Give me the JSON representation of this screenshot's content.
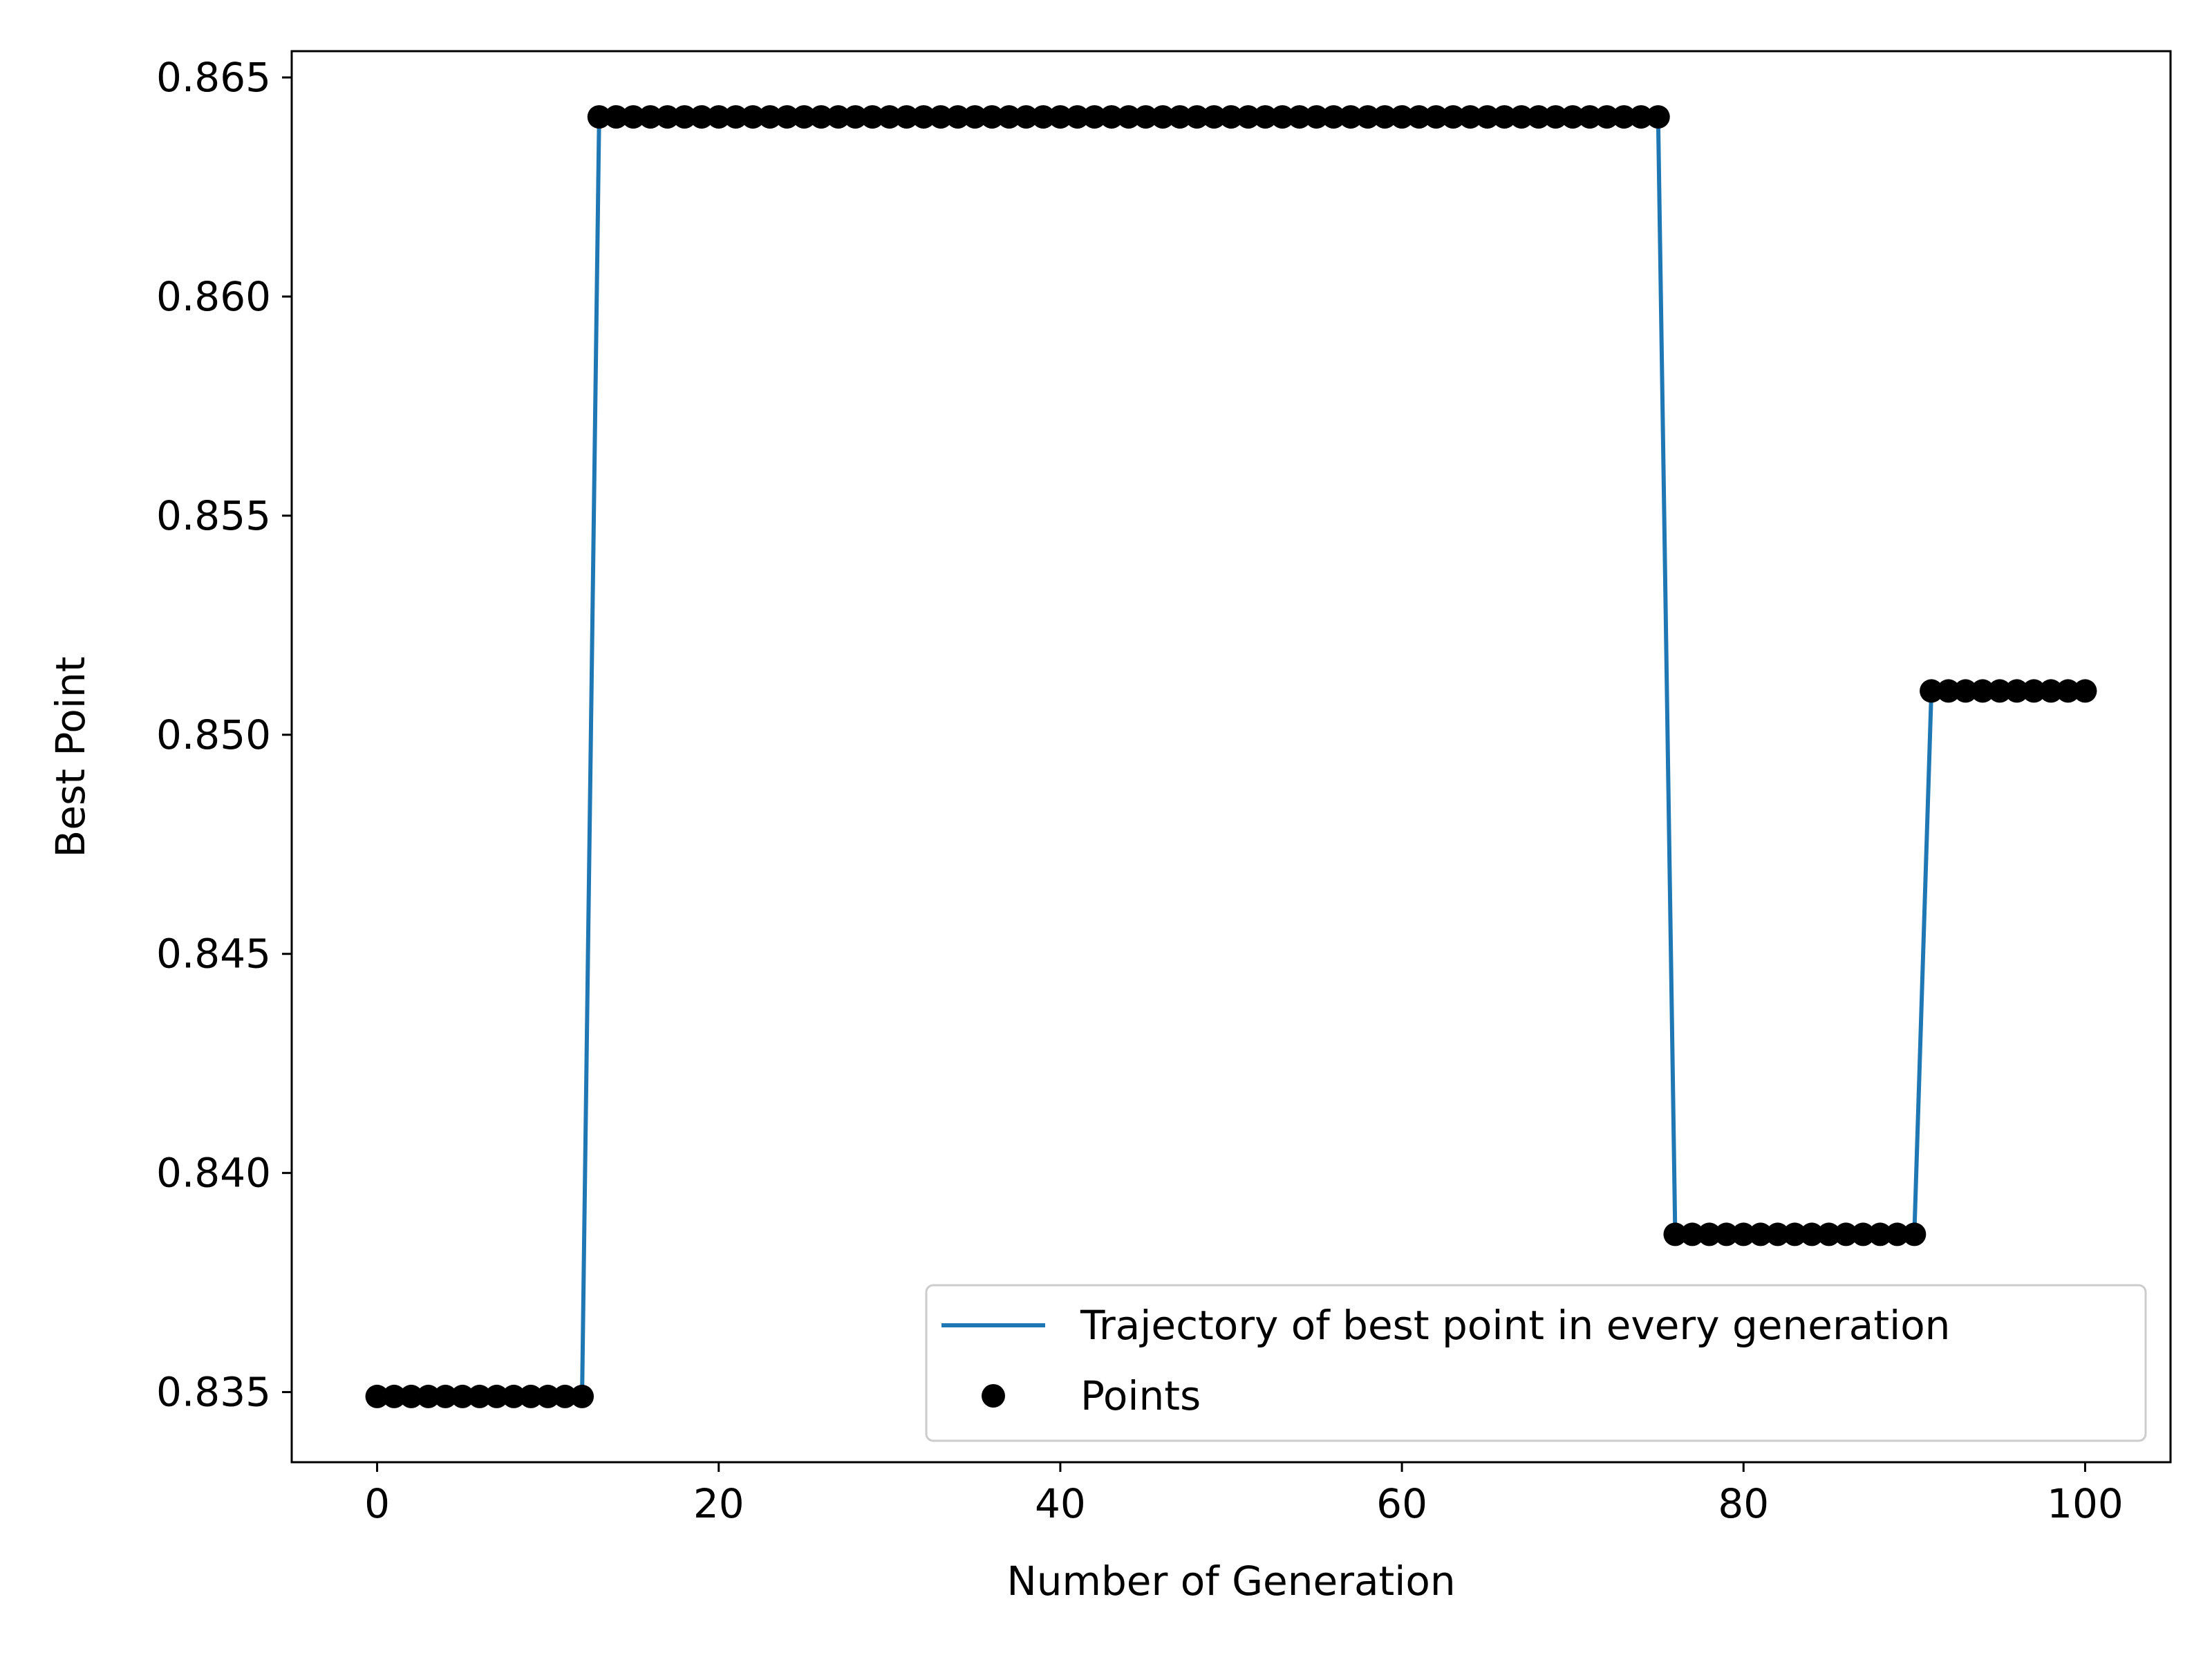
{
  "colors": {
    "line": "#1f77b4",
    "points": "#000000",
    "axes": "#000000",
    "legend_border": "#cccccc",
    "background": "#ffffff"
  },
  "chart_data": {
    "type": "line",
    "title": "",
    "xlabel": "Number of Generation",
    "ylabel": "Best Point",
    "xlim": [
      -5,
      105
    ],
    "ylim": [
      0.8334,
      0.8656
    ],
    "xticks": [
      0,
      20,
      40,
      60,
      80,
      100
    ],
    "xtick_labels": [
      "0",
      "20",
      "40",
      "60",
      "80",
      "100"
    ],
    "yticks": [
      0.835,
      0.84,
      0.845,
      0.85,
      0.855,
      0.86,
      0.865
    ],
    "ytick_labels": [
      "0.835",
      "0.840",
      "0.845",
      "0.850",
      "0.855",
      "0.860",
      "0.865"
    ],
    "grid": false,
    "legend_position": "lower right",
    "segments": [
      {
        "from": 0,
        "to": 12,
        "value": 0.8349
      },
      {
        "from": 13,
        "to": 75,
        "value": 0.8641
      },
      {
        "from": 76,
        "to": 90,
        "value": 0.8386
      },
      {
        "from": 91,
        "to": 100,
        "value": 0.851
      }
    ],
    "series": [
      {
        "name": "Trajectory of best point in every generation",
        "kind": "line",
        "color": "#1f77b4"
      },
      {
        "name": "Points",
        "kind": "markers",
        "color": "#000000"
      }
    ]
  }
}
